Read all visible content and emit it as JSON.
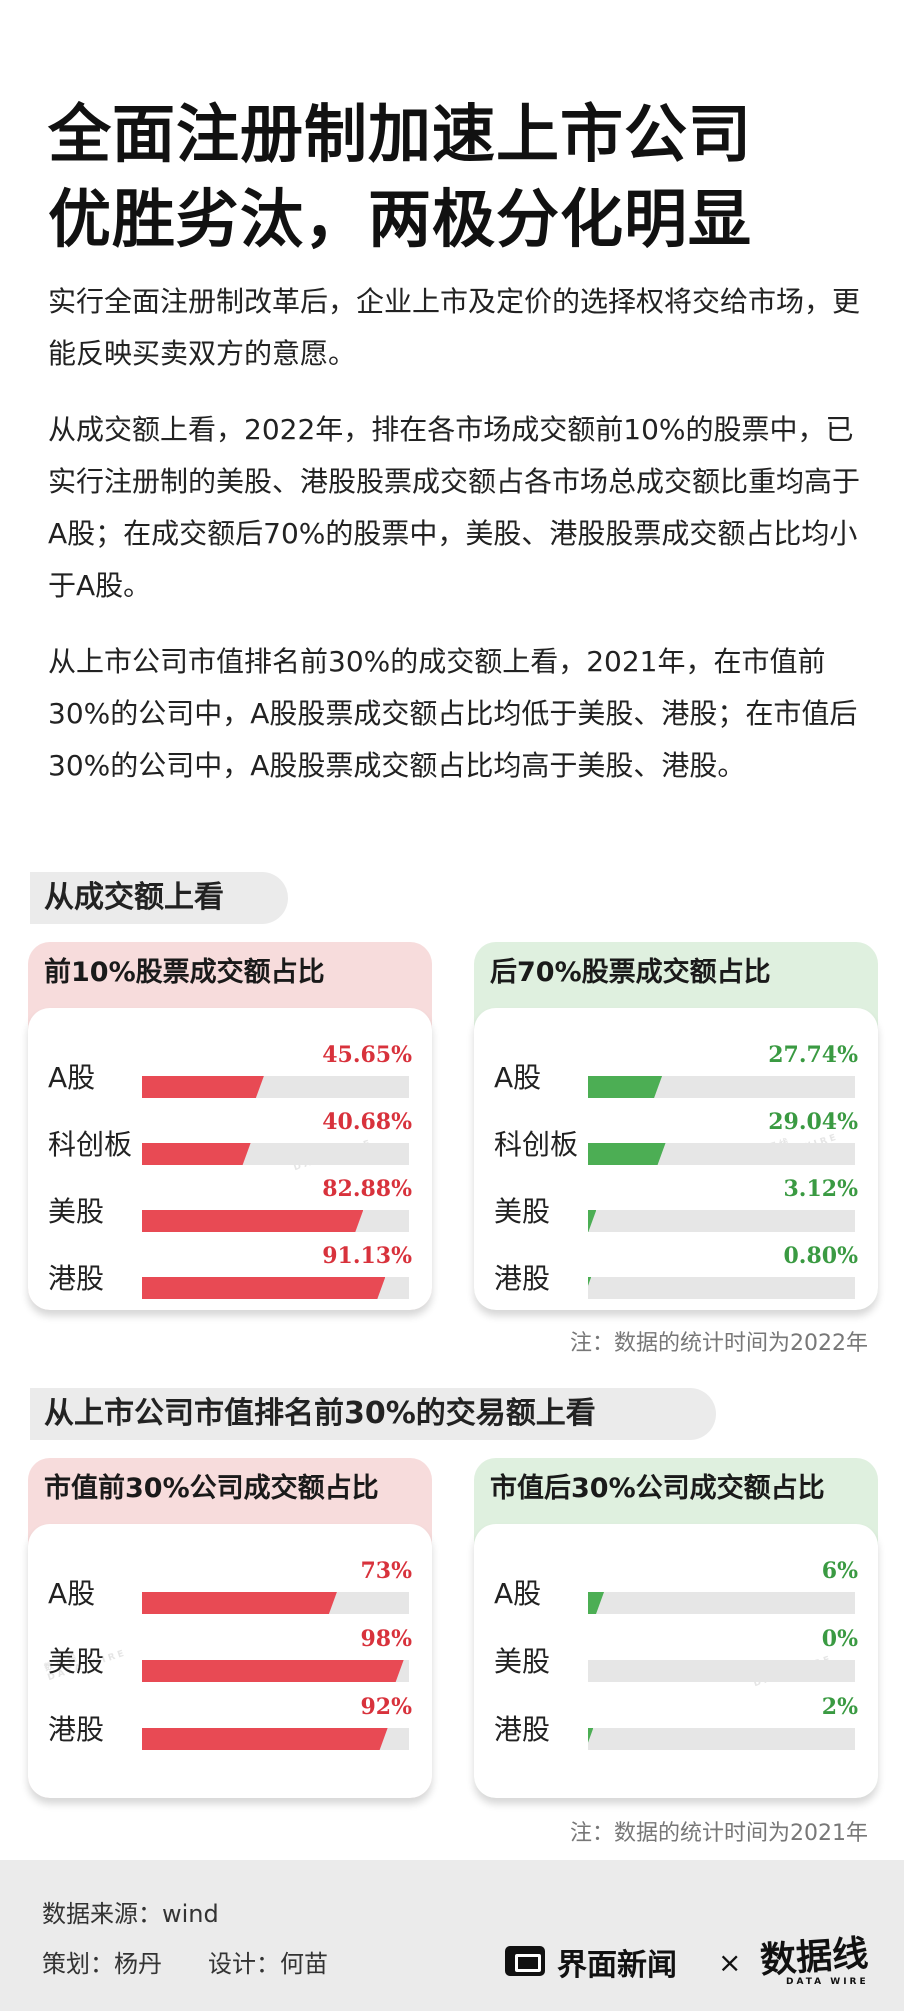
{
  "title_line1": "全面注册制加速上市公司",
  "title_line2": "优胜劣汰，两极分化明显",
  "paragraphs": [
    "实行全面注册制改革后，企业上市及定价的选择权将交给市场，更能反映买卖双方的意愿。",
    "从成交额上看，2022年，排在各市场成交额前10%的股票中，已实行注册制的美股、港股股票成交额占各市场总成交额比重均高于A股；在成交额后70%的股票中，美股、港股股票成交额占比均小于A股。",
    "从上市公司市值排名前30%的成交额上看，2021年，在市值前30%的公司中，A股股票成交额占比均低于美股、港股；在市值后30%的公司中，A股股票成交额占比均高于美股、港股。"
  ],
  "section1_title": "从成交额上看",
  "section2_title": "从上市公司市值排名前30%的交易额上看",
  "note1": "注：数据的统计时间为2022年",
  "note2": "注：数据的统计时间为2021年",
  "watermark_text": "数据线",
  "watermark_sub": "DATA WIRE",
  "colors": {
    "red_bar": "#e84a54",
    "green_bar": "#4cae54",
    "red_header": "#f7dcdc",
    "green_header": "#dff0df"
  },
  "chart_data": [
    {
      "type": "bar",
      "title": "前10%股票成交额占比",
      "categories": [
        "A股",
        "科创板",
        "美股",
        "港股"
      ],
      "values": [
        45.65,
        40.68,
        82.88,
        91.13
      ],
      "labels": [
        "45.65%",
        "40.68%",
        "82.88%",
        "91.13%"
      ],
      "ylim": [
        0,
        100
      ],
      "color": "red"
    },
    {
      "type": "bar",
      "title": "后70%股票成交额占比",
      "categories": [
        "A股",
        "科创板",
        "美股",
        "港股"
      ],
      "values": [
        27.74,
        29.04,
        3.12,
        0.8
      ],
      "labels": [
        "27.74%",
        "29.04%",
        "3.12%",
        "0.80%"
      ],
      "ylim": [
        0,
        100
      ],
      "color": "green"
    },
    {
      "type": "bar",
      "title": "市值前30%公司成交额占比",
      "categories": [
        "A股",
        "美股",
        "港股"
      ],
      "values": [
        73,
        98,
        92
      ],
      "labels": [
        "73%",
        "98%",
        "92%"
      ],
      "ylim": [
        0,
        100
      ],
      "color": "red"
    },
    {
      "type": "bar",
      "title": "市值后30%公司成交额占比",
      "categories": [
        "A股",
        "美股",
        "港股"
      ],
      "values": [
        6,
        0,
        2
      ],
      "labels": [
        "6%",
        "0%",
        "2%"
      ],
      "ylim": [
        0,
        100
      ],
      "color": "green"
    }
  ],
  "footer": {
    "source": "数据来源：wind",
    "planner": "策划：杨丹",
    "designer": "设计：何苗",
    "brand1": "界面新闻",
    "times": "×",
    "brand2": "数据线",
    "brand2_sub": "DATA WIRE"
  }
}
